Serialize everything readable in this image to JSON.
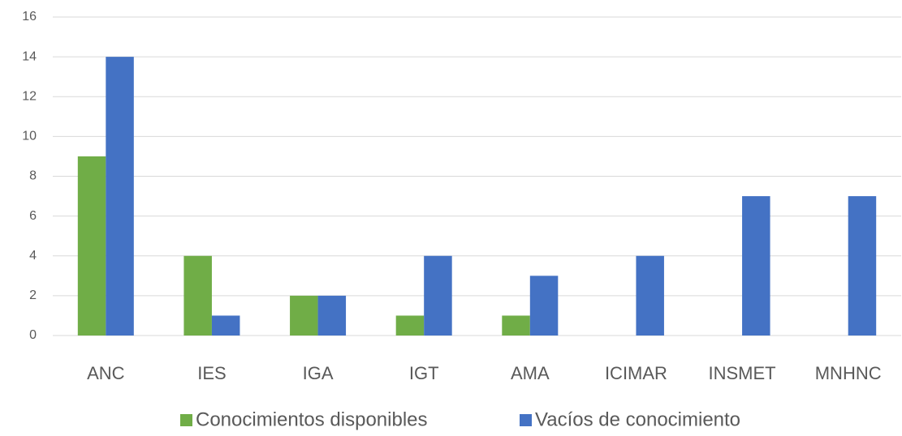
{
  "chart_data": {
    "type": "bar",
    "categories": [
      "ANC",
      "IES",
      "IGA",
      "IGT",
      "AMA",
      "ICIMAR",
      "INSMET",
      "MNHNC"
    ],
    "series": [
      {
        "name": "Conocimientos disponibles",
        "color": "#70ad47",
        "values": [
          9,
          4,
          2,
          1,
          1,
          0,
          0,
          0
        ]
      },
      {
        "name": "Vacíos de conocimiento",
        "color": "#4472c4",
        "values": [
          14,
          1,
          2,
          4,
          3,
          4,
          7,
          7
        ]
      }
    ],
    "ylim": [
      0,
      16
    ],
    "yticks": [
      0,
      2,
      4,
      6,
      8,
      10,
      12,
      14,
      16
    ],
    "grid": true,
    "legend": "bottom"
  }
}
